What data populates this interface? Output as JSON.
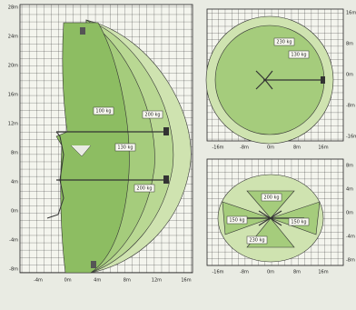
{
  "left_panel": {
    "y_labels": [
      "28m",
      "24m",
      "20m",
      "16m",
      "12m",
      "8m",
      "4m",
      "0m",
      "-4m",
      "-8m"
    ],
    "x_labels": [
      "-4m",
      "0m",
      "4m",
      "8m",
      "12m",
      "16m"
    ],
    "load_labels": [
      "100 kg",
      "200 kg",
      "130 kg",
      "200 kg"
    ]
  },
  "top_right_panel": {
    "y_labels": [
      "16m",
      "8m",
      "0m",
      "-8m",
      "-16m"
    ],
    "x_labels": [
      "-16m",
      "-8m",
      "0m",
      "8m",
      "16m"
    ],
    "load_labels": [
      "230 kg",
      "130 kg"
    ]
  },
  "bottom_right_panel": {
    "y_labels": [
      "8m",
      "4m",
      "0m",
      "-4m",
      "-8m"
    ],
    "x_labels": [
      "-16m",
      "-8m",
      "0m",
      "8m",
      "16m"
    ],
    "load_labels": [
      "200 kg",
      "150 kg",
      "150 kg",
      "230 kg"
    ]
  }
}
